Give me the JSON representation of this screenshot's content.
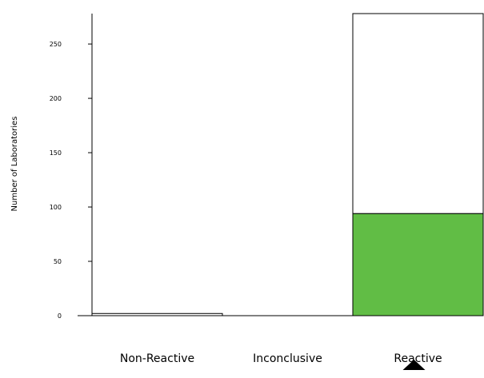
{
  "chart_data": {
    "type": "bar",
    "stacked": true,
    "title": "",
    "xlabel": "",
    "ylabel": "Number of Laboratories",
    "ylim": [
      0,
      280
    ],
    "yticks": [
      0,
      50,
      100,
      150,
      200,
      250
    ],
    "categories": [
      "Non-Reactive",
      "Inconclusive",
      "Reactive"
    ],
    "series": [
      {
        "values": [
          0,
          0,
          94
        ],
        "color": "#61bd45"
      },
      {
        "values": [
          2,
          0,
          184
        ],
        "color": "#ffffff"
      }
    ],
    "totals": [
      2,
      0,
      278
    ],
    "marker": {
      "category": "Reactive",
      "shape": "triangle-up",
      "color": "#000000"
    },
    "grid": false
  }
}
